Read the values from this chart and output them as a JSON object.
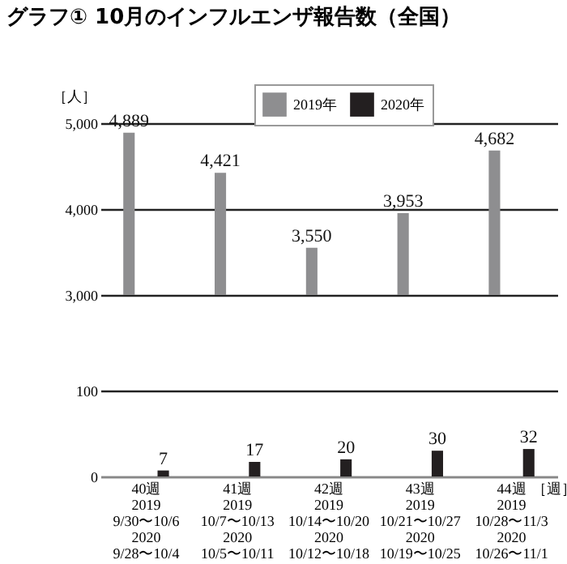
{
  "chart_data": [
    {
      "type": "bar",
      "title": "グラフ① 10月のインフルエンザ報告数（全国）",
      "ylabel": "［人］",
      "categories": [
        null,
        null,
        null,
        null,
        null
      ],
      "series": [
        {
          "name": "2019年",
          "color": "#8e8e90",
          "values": [
            4889,
            4421,
            3550,
            3953,
            4682
          ],
          "value_labels": [
            "4,889",
            "4,421",
            "3,550",
            "3,953",
            "4,682"
          ]
        },
        {
          "name": "2020年",
          "color": "#231f20",
          "values": [
            null,
            null,
            null,
            null,
            null
          ]
        }
      ],
      "ylim": [
        3000,
        5000
      ],
      "yticks": [
        {
          "value": 3000,
          "label": "3,000"
        },
        {
          "value": 4000,
          "label": "4,000"
        },
        {
          "value": 5000,
          "label": "5,000"
        }
      ],
      "grid": "y",
      "legend": "top",
      "tick_labels": "y"
    },
    {
      "type": "bar",
      "xlabel": "［週］",
      "categories": [
        "40週\n2019\n9/30〜10/6\n2020\n9/28〜10/4",
        "41週\n2019\n10/7〜10/13\n2020\n10/5〜10/11",
        "42週\n2019\n10/14〜10/20\n2020\n10/12〜10/18",
        "43週\n2019\n10/21〜10/27\n2020\n10/19〜10/25",
        "44週\n2019\n10/28〜11/3\n2020\n10/26〜11/1"
      ],
      "series": [
        {
          "color": "#8e8e90",
          "values": [
            null,
            null,
            null,
            null,
            null
          ]
        },
        {
          "color": "#231f20",
          "values": [
            7,
            17,
            20,
            30,
            32
          ],
          "value_labels": [
            "7",
            "17",
            "20",
            "30",
            "32"
          ]
        }
      ],
      "ylim": [
        0,
        100
      ],
      "yticks": [
        0,
        100
      ],
      "grid": "y",
      "legend": false
    }
  ]
}
